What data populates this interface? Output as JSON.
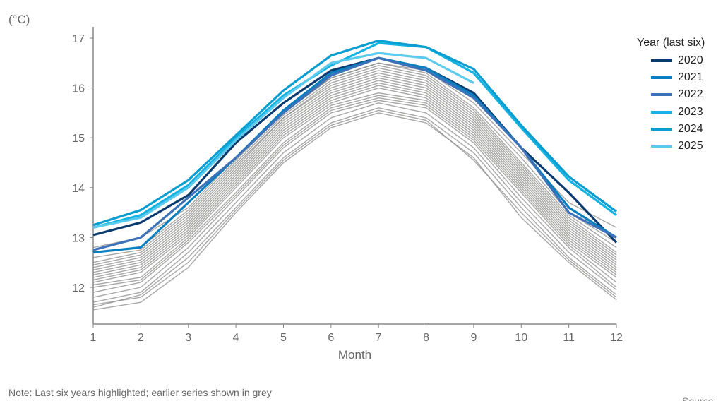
{
  "chart_data": {
    "type": "line",
    "title": "",
    "xlabel": "Month",
    "ylabel": "(°C)",
    "x": [
      1,
      2,
      3,
      4,
      5,
      6,
      7,
      8,
      9,
      10,
      11,
      12
    ],
    "xlim": [
      1,
      12
    ],
    "ylim": [
      11.3,
      17.2
    ],
    "yticks": [
      12,
      13,
      14,
      15,
      16,
      17
    ],
    "grid": false,
    "legend": {
      "title": "Year (last six)",
      "placement": "right"
    },
    "highlight_series": [
      {
        "name": "2020",
        "color": "#0b3a6e",
        "values": [
          13.05,
          13.3,
          13.85,
          14.9,
          15.7,
          16.35,
          16.6,
          16.4,
          15.9,
          14.8,
          13.9,
          12.9
        ]
      },
      {
        "name": "2021",
        "color": "#0a7fc0",
        "values": [
          12.7,
          12.8,
          13.7,
          14.6,
          15.55,
          16.3,
          16.6,
          16.4,
          15.85,
          14.8,
          13.6,
          13.0
        ]
      },
      {
        "name": "2022",
        "color": "#3d72b8",
        "values": [
          12.75,
          13.0,
          13.8,
          14.6,
          15.5,
          16.25,
          16.6,
          16.35,
          15.8,
          14.8,
          13.5,
          13.0
        ]
      },
      {
        "name": "2023",
        "color": "#14b2e2",
        "values": [
          13.2,
          13.45,
          14.05,
          15.0,
          15.85,
          16.45,
          16.9,
          16.82,
          16.3,
          15.2,
          14.15,
          13.45
        ]
      },
      {
        "name": "2024",
        "color": "#0a9dd0",
        "values": [
          13.25,
          13.55,
          14.15,
          15.05,
          15.95,
          16.65,
          16.95,
          16.82,
          16.38,
          15.25,
          14.22,
          13.52
        ]
      },
      {
        "name": "2025",
        "color": "#5ccaec",
        "values": [
          13.2,
          13.4,
          14.0,
          14.95,
          15.8,
          16.5,
          16.7,
          16.6,
          16.1,
          null,
          null,
          null
        ]
      }
    ],
    "grey_color": "#8a8a88",
    "grey_series": [
      [
        11.55,
        11.7,
        12.4,
        13.5,
        14.5,
        15.2,
        15.5,
        15.3,
        14.6,
        13.4,
        12.5,
        11.75
      ],
      [
        11.6,
        11.85,
        12.6,
        13.6,
        14.6,
        15.3,
        15.6,
        15.4,
        14.7,
        13.6,
        12.6,
        11.85
      ],
      [
        11.7,
        11.9,
        12.7,
        13.7,
        14.7,
        15.4,
        15.7,
        15.5,
        14.8,
        13.7,
        12.7,
        11.95
      ],
      [
        11.8,
        12.0,
        12.8,
        13.8,
        14.8,
        15.5,
        15.75,
        15.6,
        14.9,
        13.8,
        12.8,
        12.0
      ],
      [
        11.9,
        12.1,
        12.9,
        13.85,
        14.85,
        15.55,
        15.8,
        15.65,
        14.95,
        13.9,
        12.85,
        12.1
      ],
      [
        12.0,
        12.15,
        12.95,
        13.9,
        14.9,
        15.6,
        15.85,
        15.7,
        15.0,
        13.95,
        12.9,
        12.2
      ],
      [
        12.05,
        12.2,
        13.0,
        14.0,
        15.0,
        15.65,
        15.9,
        15.75,
        15.05,
        14.0,
        12.95,
        12.25
      ],
      [
        12.1,
        12.3,
        13.05,
        14.05,
        15.05,
        15.7,
        16.0,
        15.8,
        15.1,
        14.05,
        13.0,
        12.3
      ],
      [
        12.15,
        12.35,
        13.1,
        14.1,
        15.1,
        15.75,
        16.05,
        15.85,
        15.15,
        14.1,
        13.05,
        12.35
      ],
      [
        12.2,
        12.4,
        13.15,
        14.15,
        15.15,
        15.8,
        16.1,
        15.9,
        15.2,
        14.15,
        13.1,
        12.4
      ],
      [
        12.25,
        12.45,
        13.2,
        14.2,
        15.2,
        15.85,
        16.15,
        15.95,
        15.25,
        14.2,
        13.15,
        12.45
      ],
      [
        12.3,
        12.5,
        13.25,
        14.25,
        15.25,
        15.9,
        16.2,
        16.0,
        15.3,
        14.25,
        13.2,
        12.5
      ],
      [
        12.35,
        12.55,
        13.3,
        14.3,
        15.3,
        15.95,
        16.25,
        16.05,
        15.35,
        14.3,
        13.25,
        12.55
      ],
      [
        12.4,
        12.6,
        13.35,
        14.35,
        15.35,
        16.0,
        16.3,
        16.1,
        15.4,
        14.35,
        13.3,
        12.6
      ],
      [
        12.45,
        12.65,
        13.4,
        14.4,
        15.4,
        16.05,
        16.35,
        16.15,
        15.45,
        14.4,
        13.35,
        12.65
      ],
      [
        12.5,
        12.7,
        13.45,
        14.45,
        15.4,
        16.1,
        16.4,
        16.2,
        15.5,
        14.45,
        13.4,
        12.7
      ],
      [
        12.6,
        12.75,
        13.5,
        14.5,
        15.45,
        16.15,
        16.45,
        16.25,
        15.55,
        14.5,
        13.45,
        12.8
      ],
      [
        12.7,
        12.8,
        13.55,
        14.55,
        15.5,
        16.2,
        16.5,
        16.3,
        15.6,
        14.6,
        13.5,
        12.9
      ],
      [
        12.8,
        13.0,
        13.6,
        14.6,
        15.5,
        16.2,
        16.5,
        16.35,
        15.7,
        14.7,
        13.7,
        13.2
      ],
      [
        11.65,
        11.8,
        12.5,
        13.55,
        14.55,
        15.25,
        15.55,
        15.35,
        14.55,
        13.5,
        12.55,
        11.8
      ]
    ],
    "note": "Note: Last six years highlighted; earlier series shown in grey",
    "source": "Source:"
  }
}
